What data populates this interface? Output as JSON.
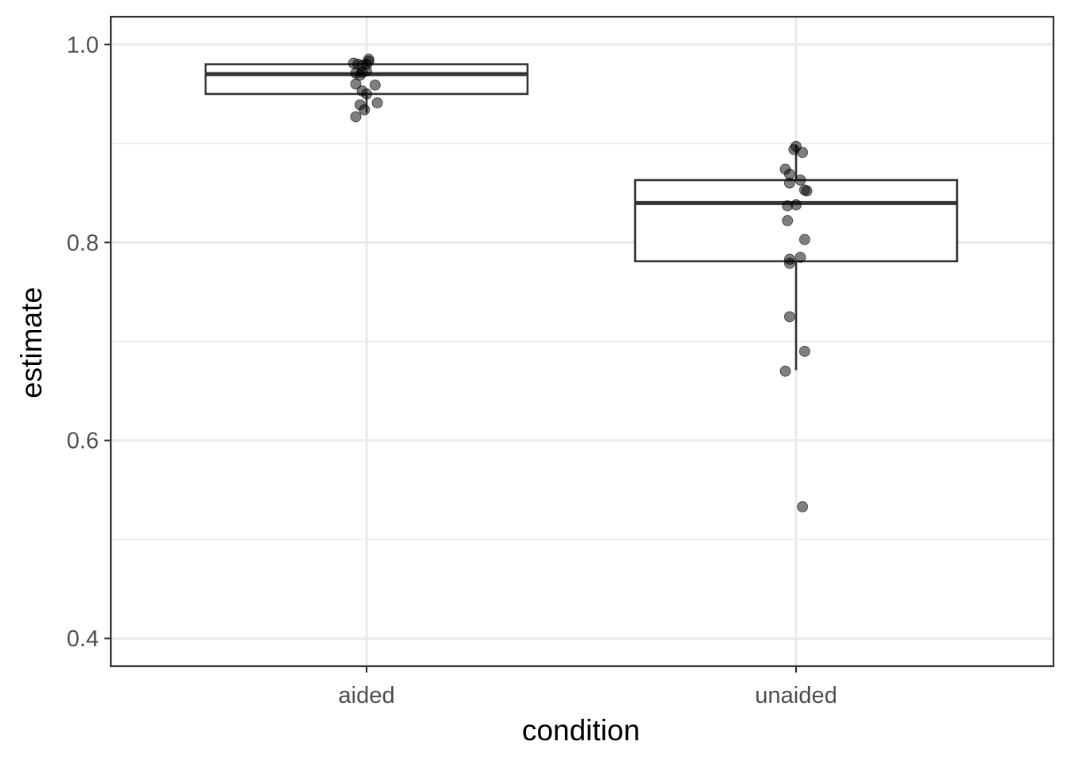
{
  "chart_data": {
    "type": "boxplot",
    "xlabel": "condition",
    "ylabel": "estimate",
    "categories": [
      "aided",
      "unaided"
    ],
    "ylim": [
      0.372,
      1.028
    ],
    "yticks": [
      0.4,
      0.6,
      0.8,
      1.0
    ],
    "ytick_labels": [
      "0.4",
      "0.6",
      "0.8",
      "1.0"
    ],
    "grid": true,
    "boxes": [
      {
        "category": "aided",
        "whisker_low": 0.931,
        "q1": 0.95,
        "median": 0.97,
        "q3": 0.98,
        "whisker_high": 0.985
      },
      {
        "category": "unaided",
        "whisker_low": 0.671,
        "q1": 0.781,
        "median": 0.84,
        "q3": 0.863,
        "whisker_high": 0.898
      }
    ],
    "points": [
      {
        "category": "aided",
        "jitter": -0.06,
        "y": 0.981
      },
      {
        "category": "aided",
        "jitter": -0.04,
        "y": 0.98
      },
      {
        "category": "aided",
        "jitter": -0.02,
        "y": 0.979
      },
      {
        "category": "aided",
        "jitter": 0.0,
        "y": 0.98
      },
      {
        "category": "aided",
        "jitter": 0.01,
        "y": 0.983
      },
      {
        "category": "aided",
        "jitter": 0.01,
        "y": 0.985
      },
      {
        "category": "aided",
        "jitter": -0.05,
        "y": 0.971
      },
      {
        "category": "aided",
        "jitter": -0.02,
        "y": 0.972
      },
      {
        "category": "aided",
        "jitter": 0.0,
        "y": 0.973
      },
      {
        "category": "aided",
        "jitter": -0.03,
        "y": 0.969
      },
      {
        "category": "aided",
        "jitter": -0.05,
        "y": 0.96
      },
      {
        "category": "aided",
        "jitter": 0.04,
        "y": 0.959
      },
      {
        "category": "aided",
        "jitter": -0.02,
        "y": 0.953
      },
      {
        "category": "aided",
        "jitter": 0.0,
        "y": 0.95
      },
      {
        "category": "aided",
        "jitter": -0.03,
        "y": 0.939
      },
      {
        "category": "aided",
        "jitter": 0.05,
        "y": 0.941
      },
      {
        "category": "aided",
        "jitter": -0.01,
        "y": 0.934
      },
      {
        "category": "aided",
        "jitter": -0.05,
        "y": 0.927
      },
      {
        "category": "unaided",
        "jitter": 0.0,
        "y": 0.897
      },
      {
        "category": "unaided",
        "jitter": -0.01,
        "y": 0.894
      },
      {
        "category": "unaided",
        "jitter": 0.03,
        "y": 0.891
      },
      {
        "category": "unaided",
        "jitter": -0.05,
        "y": 0.874
      },
      {
        "category": "unaided",
        "jitter": -0.03,
        "y": 0.869
      },
      {
        "category": "unaided",
        "jitter": 0.02,
        "y": 0.863
      },
      {
        "category": "unaided",
        "jitter": -0.03,
        "y": 0.86
      },
      {
        "category": "unaided",
        "jitter": 0.04,
        "y": 0.853
      },
      {
        "category": "unaided",
        "jitter": 0.05,
        "y": 0.852
      },
      {
        "category": "unaided",
        "jitter": 0.0,
        "y": 0.838
      },
      {
        "category": "unaided",
        "jitter": -0.04,
        "y": 0.837
      },
      {
        "category": "unaided",
        "jitter": -0.04,
        "y": 0.822
      },
      {
        "category": "unaided",
        "jitter": 0.04,
        "y": 0.803
      },
      {
        "category": "unaided",
        "jitter": 0.02,
        "y": 0.785
      },
      {
        "category": "unaided",
        "jitter": -0.03,
        "y": 0.783
      },
      {
        "category": "unaided",
        "jitter": -0.03,
        "y": 0.779
      },
      {
        "category": "unaided",
        "jitter": -0.03,
        "y": 0.725
      },
      {
        "category": "unaided",
        "jitter": 0.04,
        "y": 0.69
      },
      {
        "category": "unaided",
        "jitter": -0.05,
        "y": 0.67
      },
      {
        "category": "unaided",
        "jitter": 0.03,
        "y": 0.533
      }
    ],
    "colors": {
      "panel_border": "#333333",
      "grid_major": "#ebebeb",
      "grid_minor": "#f2f2f2",
      "box_line": "#333333",
      "point_fill": "#000000",
      "tick_text": "#4d4d4d",
      "title_text": "#000000"
    }
  }
}
